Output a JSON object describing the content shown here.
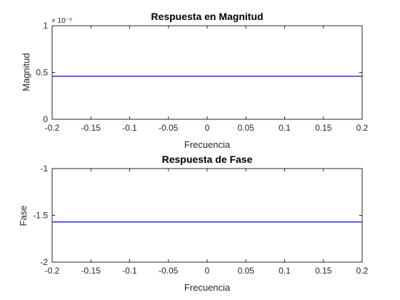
{
  "chart_data": [
    {
      "type": "line",
      "title": "Respuesta en Magnitud",
      "xlabel": "Frecuencia",
      "ylabel": "Magnitud",
      "xlim": [
        -0.2,
        0.2
      ],
      "ylim": [
        0,
        1
      ],
      "y_exponent_label": "× 10⁻⁵",
      "x_ticks": [
        "-0.2",
        "-0.15",
        "-0.1",
        "-0.05",
        "0",
        "0.05",
        "0.1",
        "0.15",
        "0.2"
      ],
      "y_ticks": [
        "0",
        "0.5",
        "1"
      ],
      "series": [
        {
          "x": [
            -0.2,
            0.2
          ],
          "y": [
            0.46,
            0.46
          ],
          "color": "#0000ff"
        }
      ]
    },
    {
      "type": "line",
      "title": "Respuesta de Fase",
      "xlabel": "Frecuencia",
      "ylabel": "Fase",
      "xlim": [
        -0.2,
        0.2
      ],
      "ylim": [
        -2,
        -1
      ],
      "x_ticks": [
        "-0.2",
        "-0.15",
        "-0.1",
        "-0.05",
        "0",
        "0.05",
        "0.1",
        "0.15",
        "0.2"
      ],
      "y_ticks": [
        "-2",
        "-1.5",
        "-1"
      ],
      "series": [
        {
          "x": [
            -0.2,
            0.2
          ],
          "y": [
            -1.5708,
            -1.5708
          ],
          "color": "#0000ff"
        }
      ]
    }
  ]
}
